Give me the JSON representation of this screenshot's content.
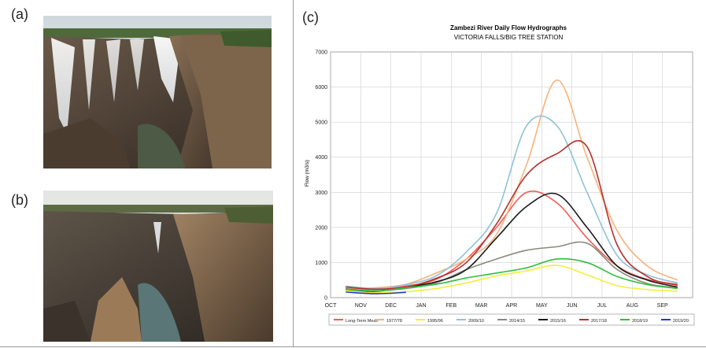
{
  "panels": {
    "a_label": "(a)",
    "b_label": "(b)",
    "c_label": "(c)"
  },
  "chart_data": {
    "type": "line",
    "title": "Zambezi River Daily Flow Hydrographs",
    "subtitle": "VICTORIA FALLS/BIG TREE STATION",
    "ylabel": "Flow (m3/s)",
    "xlabel": "",
    "ylim": [
      0,
      7000
    ],
    "yticks": [
      0,
      1000,
      2000,
      3000,
      4000,
      5000,
      6000,
      7000
    ],
    "x": [
      "OCT",
      "NOV",
      "DEC",
      "JAN",
      "FEB",
      "MAR",
      "APR",
      "MAY",
      "JUN",
      "JUL",
      "AUG",
      "SEP"
    ],
    "grid": true,
    "legend_position": "bottom",
    "series": [
      {
        "name": "Long-Term Mean",
        "color": "#f25a5a",
        "values": [
          300,
          240,
          330,
          520,
          1100,
          2000,
          3000,
          2700,
          1700,
          900,
          520,
          380
        ]
      },
      {
        "name": "1977/78",
        "color": "#f7b27a",
        "values": [
          250,
          280,
          380,
          700,
          1100,
          1800,
          3800,
          6200,
          4000,
          1900,
          900,
          500
        ]
      },
      {
        "name": "1995/96",
        "color": "#f2ee3a",
        "values": [
          200,
          140,
          170,
          260,
          420,
          620,
          760,
          920,
          650,
          340,
          230,
          180
        ]
      },
      {
        "name": "2009/10",
        "color": "#8ec3d6",
        "values": [
          330,
          260,
          370,
          620,
          1300,
          2400,
          4900,
          4900,
          3000,
          1200,
          650,
          420
        ]
      },
      {
        "name": "2014/15",
        "color": "#8a8a7a",
        "values": [
          250,
          200,
          260,
          420,
          800,
          1100,
          1350,
          1450,
          1550,
          800,
          400,
          280
        ]
      },
      {
        "name": "2015/16",
        "color": "#1a1a1a",
        "values": [
          240,
          180,
          300,
          450,
          800,
          1700,
          2600,
          2950,
          2000,
          900,
          500,
          300
        ]
      },
      {
        "name": "2017/18",
        "color": "#b5302f",
        "values": [
          300,
          240,
          300,
          550,
          1000,
          2100,
          3500,
          4100,
          4300,
          1500,
          600,
          350
        ]
      },
      {
        "name": "2018/19",
        "color": "#2fbf3a",
        "values": [
          240,
          190,
          280,
          380,
          560,
          700,
          850,
          1100,
          1000,
          600,
          370,
          260
        ]
      },
      {
        "name": "2019/20",
        "color": "#2a34d6",
        "values": [
          160,
          110,
          150,
          null,
          null,
          null,
          null,
          null,
          null,
          null,
          null,
          null
        ]
      }
    ]
  }
}
